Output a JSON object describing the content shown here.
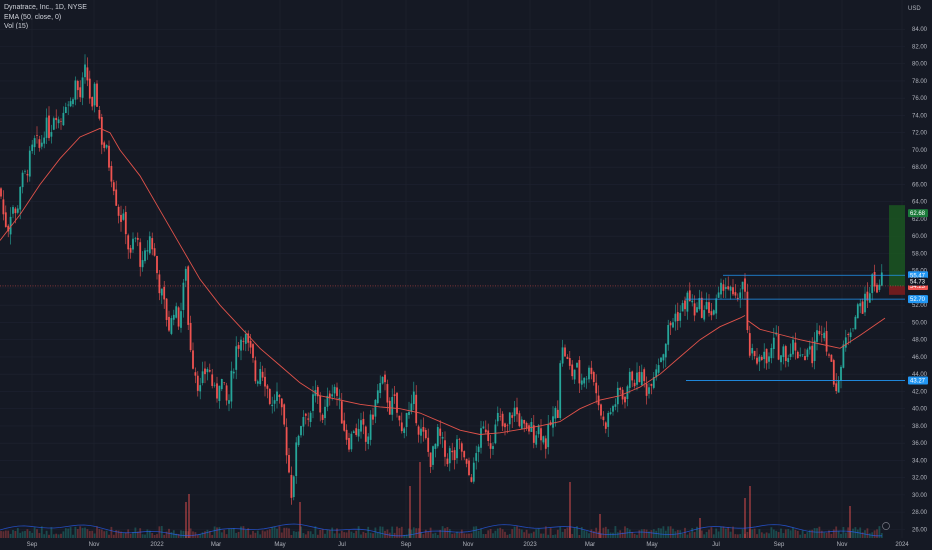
{
  "legend": {
    "symbol": "Dynatrace, Inc., 1D, NYSE",
    "ema": "EMA (50, close, 0)",
    "vol": "Vol (15)"
  },
  "currency": "USD",
  "colors": {
    "background": "#151924",
    "up": "#26a69a",
    "down": "#ef5350",
    "ema": "#e0524a",
    "level_line": "#2196f3",
    "target_zone": "#1b5e20",
    "stop_zone": "#7f1d1d",
    "volume_ma": "#2962ff"
  },
  "chart_data": {
    "type": "candlestick",
    "ylim": [
      25,
      86
    ],
    "y_ticks": [
      "26.00",
      "28.00",
      "30.00",
      "32.00",
      "34.00",
      "36.00",
      "38.00",
      "40.00",
      "42.00",
      "44.00",
      "46.00",
      "48.00",
      "50.00",
      "52.00",
      "54.00",
      "56.00",
      "58.00",
      "60.00",
      "62.00",
      "64.00",
      "66.00",
      "68.00",
      "70.00",
      "72.00",
      "74.00",
      "76.00",
      "78.00",
      "80.00",
      "82.00",
      "84.00"
    ],
    "x_ticks": [
      "Sep",
      "Nov",
      "2022",
      "Mar",
      "May",
      "Jul",
      "Sep",
      "Nov",
      "2023",
      "Mar",
      "May",
      "Jul",
      "Sep",
      "Nov",
      "2024"
    ],
    "price_path": [
      [
        0,
        65.5
      ],
      [
        4,
        62
      ],
      [
        8,
        61
      ],
      [
        12,
        64
      ],
      [
        16,
        62
      ],
      [
        20,
        66
      ],
      [
        25,
        67
      ],
      [
        30,
        69
      ],
      [
        35,
        71
      ],
      [
        40,
        70
      ],
      [
        45,
        73
      ],
      [
        50,
        72
      ],
      [
        55,
        75
      ],
      [
        60,
        73
      ],
      [
        65,
        76
      ],
      [
        70,
        75
      ],
      [
        75,
        78
      ],
      [
        80,
        76
      ],
      [
        85,
        79
      ],
      [
        88,
        78
      ],
      [
        92,
        74
      ],
      [
        95,
        77
      ],
      [
        98,
        75
      ],
      [
        102,
        71
      ],
      [
        106,
        70
      ],
      [
        110,
        68
      ],
      [
        114,
        66
      ],
      [
        118,
        63
      ],
      [
        122,
        62
      ],
      [
        126,
        61
      ],
      [
        130,
        57
      ],
      [
        134,
        60
      ],
      [
        138,
        59
      ],
      [
        142,
        56
      ],
      [
        146,
        58
      ],
      [
        150,
        60
      ],
      [
        154,
        58
      ],
      [
        158,
        55
      ],
      [
        162,
        53
      ],
      [
        166,
        51
      ],
      [
        170,
        49
      ],
      [
        174,
        52
      ],
      [
        178,
        50
      ],
      [
        182,
        52
      ],
      [
        186,
        57
      ],
      [
        188,
        50
      ],
      [
        192,
        46
      ],
      [
        196,
        44
      ],
      [
        200,
        42
      ],
      [
        204,
        44
      ],
      [
        208,
        45
      ],
      [
        212,
        43
      ],
      [
        216,
        41
      ],
      [
        220,
        44
      ],
      [
        224,
        42
      ],
      [
        228,
        40
      ],
      [
        232,
        44
      ],
      [
        236,
        47
      ],
      [
        240,
        48
      ],
      [
        244,
        49
      ],
      [
        248,
        47
      ],
      [
        252,
        46
      ],
      [
        256,
        43
      ],
      [
        260,
        45
      ],
      [
        264,
        44
      ],
      [
        268,
        42
      ],
      [
        272,
        40
      ],
      [
        276,
        42
      ],
      [
        280,
        40
      ],
      [
        284,
        38
      ],
      [
        288,
        34
      ],
      [
        291,
        30
      ],
      [
        294,
        33
      ],
      [
        298,
        37
      ],
      [
        302,
        39
      ],
      [
        306,
        40
      ],
      [
        310,
        38
      ],
      [
        314,
        42
      ],
      [
        318,
        41
      ],
      [
        322,
        39
      ],
      [
        326,
        40
      ],
      [
        330,
        42
      ],
      [
        334,
        43
      ],
      [
        338,
        41
      ],
      [
        342,
        39
      ],
      [
        346,
        37
      ],
      [
        350,
        36
      ],
      [
        354,
        38
      ],
      [
        358,
        37
      ],
      [
        362,
        38
      ],
      [
        366,
        36
      ],
      [
        370,
        38
      ],
      [
        374,
        40
      ],
      [
        378,
        42
      ],
      [
        382,
        43
      ],
      [
        386,
        42
      ],
      [
        390,
        40
      ],
      [
        394,
        41
      ],
      [
        398,
        39
      ],
      [
        402,
        37
      ],
      [
        406,
        40
      ],
      [
        410,
        39
      ],
      [
        414,
        41
      ],
      [
        418,
        38
      ],
      [
        422,
        37
      ],
      [
        426,
        36
      ],
      [
        430,
        34
      ],
      [
        434,
        35
      ],
      [
        438,
        37
      ],
      [
        442,
        36
      ],
      [
        446,
        34
      ],
      [
        450,
        35
      ],
      [
        454,
        34
      ],
      [
        458,
        36
      ],
      [
        462,
        35
      ],
      [
        466,
        33
      ],
      [
        470,
        32
      ],
      [
        474,
        33
      ],
      [
        478,
        36
      ],
      [
        482,
        37
      ],
      [
        486,
        38
      ],
      [
        490,
        36
      ],
      [
        494,
        37
      ],
      [
        498,
        39
      ],
      [
        502,
        38
      ],
      [
        506,
        37
      ],
      [
        510,
        39
      ],
      [
        514,
        40
      ],
      [
        518,
        39
      ],
      [
        522,
        38
      ],
      [
        526,
        37
      ],
      [
        530,
        38
      ],
      [
        534,
        37
      ],
      [
        538,
        38
      ],
      [
        542,
        37
      ],
      [
        546,
        36
      ],
      [
        550,
        38
      ],
      [
        554,
        39
      ],
      [
        558,
        40
      ],
      [
        560,
        46
      ],
      [
        564,
        47
      ],
      [
        568,
        45
      ],
      [
        572,
        44
      ],
      [
        576,
        45
      ],
      [
        580,
        43
      ],
      [
        584,
        44
      ],
      [
        588,
        44
      ],
      [
        592,
        45
      ],
      [
        596,
        42
      ],
      [
        600,
        40
      ],
      [
        604,
        38
      ],
      [
        608,
        39
      ],
      [
        612,
        40
      ],
      [
        616,
        41
      ],
      [
        620,
        42
      ],
      [
        624,
        41
      ],
      [
        628,
        43
      ],
      [
        632,
        44
      ],
      [
        636,
        43
      ],
      [
        640,
        44
      ],
      [
        644,
        43
      ],
      [
        648,
        42
      ],
      [
        652,
        44
      ],
      [
        656,
        45
      ],
      [
        660,
        46
      ],
      [
        664,
        47
      ],
      [
        668,
        49
      ],
      [
        672,
        50
      ],
      [
        676,
        51
      ],
      [
        680,
        51
      ],
      [
        684,
        52
      ],
      [
        688,
        53
      ],
      [
        692,
        52
      ],
      [
        696,
        51
      ],
      [
        700,
        52
      ],
      [
        704,
        51
      ],
      [
        708,
        52
      ],
      [
        712,
        51
      ],
      [
        716,
        52
      ],
      [
        720,
        53
      ],
      [
        724,
        55
      ],
      [
        728,
        54
      ],
      [
        732,
        53
      ],
      [
        736,
        52
      ],
      [
        740,
        54
      ],
      [
        744,
        55
      ],
      [
        748,
        47
      ],
      [
        752,
        46
      ],
      [
        756,
        45
      ],
      [
        760,
        47
      ],
      [
        764,
        46
      ],
      [
        768,
        45
      ],
      [
        772,
        47
      ],
      [
        776,
        48
      ],
      [
        780,
        46
      ],
      [
        784,
        47
      ],
      [
        788,
        46
      ],
      [
        792,
        48
      ],
      [
        796,
        46
      ],
      [
        800,
        47
      ],
      [
        804,
        46
      ],
      [
        808,
        47
      ],
      [
        812,
        46
      ],
      [
        816,
        48
      ],
      [
        820,
        50
      ],
      [
        824,
        49
      ],
      [
        828,
        47
      ],
      [
        832,
        44
      ],
      [
        836,
        43
      ],
      [
        840,
        44
      ],
      [
        844,
        47
      ],
      [
        848,
        49
      ],
      [
        852,
        50
      ],
      [
        856,
        51
      ],
      [
        860,
        52
      ],
      [
        864,
        52
      ],
      [
        868,
        53
      ],
      [
        872,
        55
      ],
      [
        876,
        54
      ],
      [
        880,
        55
      ],
      [
        884,
        55
      ]
    ],
    "ema_path": [
      [
        0,
        59.5
      ],
      [
        20,
        62.5
      ],
      [
        40,
        66
      ],
      [
        60,
        69
      ],
      [
        80,
        71.5
      ],
      [
        100,
        72.5
      ],
      [
        110,
        72
      ],
      [
        120,
        70
      ],
      [
        140,
        67
      ],
      [
        160,
        63
      ],
      [
        180,
        59
      ],
      [
        200,
        55
      ],
      [
        220,
        52
      ],
      [
        240,
        49.5
      ],
      [
        260,
        47
      ],
      [
        280,
        45
      ],
      [
        300,
        43
      ],
      [
        320,
        41.5
      ],
      [
        340,
        41
      ],
      [
        360,
        40.5
      ],
      [
        380,
        40.2
      ],
      [
        400,
        40
      ],
      [
        420,
        39.5
      ],
      [
        440,
        38.5
      ],
      [
        460,
        37.5
      ],
      [
        480,
        37
      ],
      [
        500,
        37.2
      ],
      [
        520,
        37.6
      ],
      [
        540,
        38
      ],
      [
        560,
        38.5
      ],
      [
        580,
        40
      ],
      [
        600,
        41
      ],
      [
        620,
        41.5
      ],
      [
        640,
        42.5
      ],
      [
        660,
        44
      ],
      [
        680,
        46
      ],
      [
        700,
        48
      ],
      [
        720,
        49.5
      ],
      [
        740,
        50.5
      ],
      [
        745,
        50.8
      ]
    ],
    "ema2_path": [
      [
        748,
        50.2
      ],
      [
        760,
        49.2
      ],
      [
        780,
        48.6
      ],
      [
        800,
        48
      ],
      [
        820,
        47.5
      ],
      [
        840,
        47
      ],
      [
        860,
        48.5
      ],
      [
        885,
        50.5
      ]
    ],
    "levels": [
      {
        "price": 55.47,
        "x_start": 723,
        "label": "55.47",
        "color": "#2196f3"
      },
      {
        "price": 52.7,
        "x_start": 685,
        "label": "52.70",
        "color": "#2196f3"
      },
      {
        "price": 43.27,
        "x_start": 686,
        "label": "43.27",
        "color": "#2196f3"
      }
    ],
    "current_price": {
      "price": 54.23,
      "label": "54.23",
      "color": "#ef5350"
    },
    "last_price_label": {
      "price": 54.73,
      "label": "54.73"
    },
    "target": {
      "price": 62.68,
      "label": "62.68",
      "top": 63.6,
      "bottom": 54.2,
      "stop": 53.2
    },
    "volume_spikes": [
      [
        189,
        0.55
      ],
      [
        186,
        0.45
      ],
      [
        300,
        0.45
      ],
      [
        410,
        0.65
      ],
      [
        420,
        0.95
      ],
      [
        570,
        0.7
      ],
      [
        750,
        0.65
      ],
      [
        745,
        0.5
      ],
      [
        850,
        0.4
      ],
      [
        600,
        0.3
      ],
      [
        700,
        0.25
      ]
    ]
  }
}
